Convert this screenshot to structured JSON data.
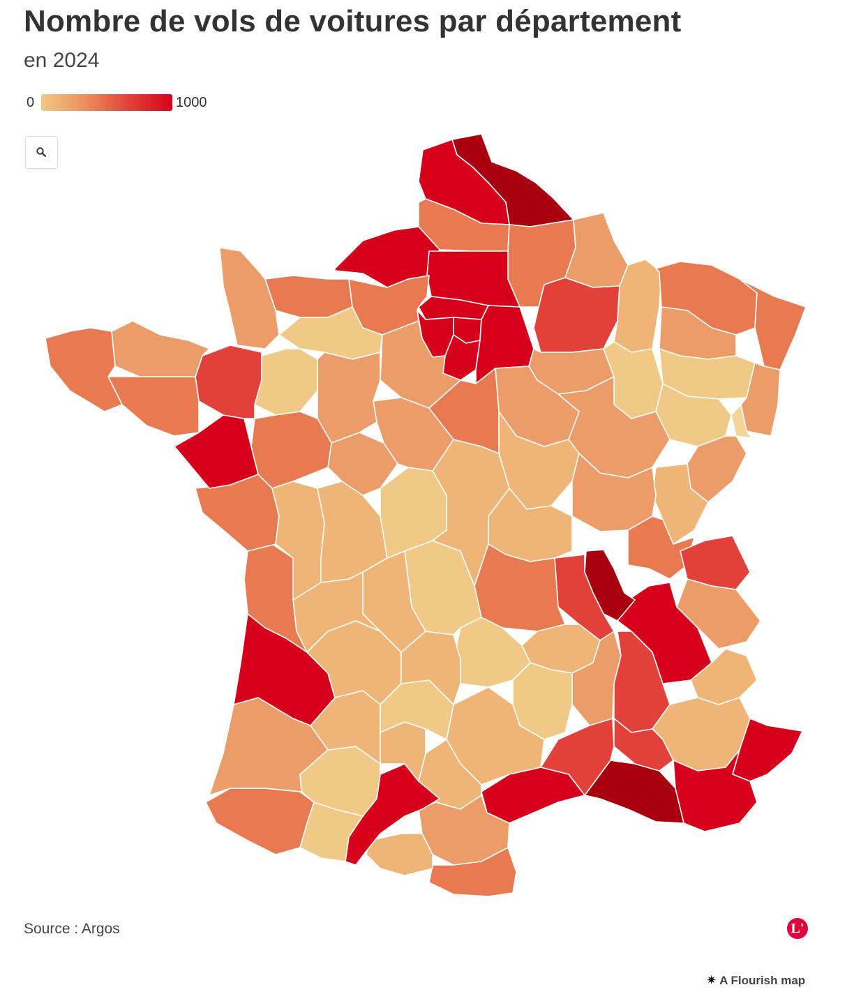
{
  "title": "Nombre de vols de voitures par département",
  "subtitle": "en 2024",
  "legend": {
    "min_label": "0",
    "max_label": "1000",
    "colors": [
      "#f0c987",
      "#ec8f5c",
      "#e2413a",
      "#d7001a"
    ]
  },
  "controls": {
    "zoom_icon": "search-icon"
  },
  "footer": {
    "source": "Source : Argos",
    "logo_letter": "L'",
    "credit": "A Flourish map"
  },
  "colors": {
    "very_high": "#a8000f",
    "high": "#d7001a",
    "mid_high": "#e2413a",
    "mid": "#e87a52",
    "mid_low": "#ec9c68",
    "low": "#efb577",
    "very_low": "#f0c987"
  }
}
